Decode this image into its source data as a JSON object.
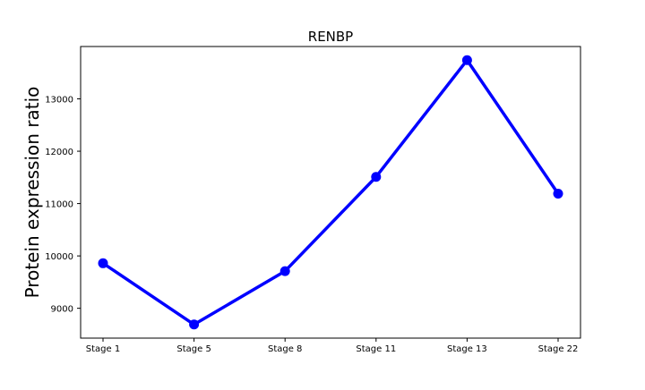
{
  "chart_data": {
    "type": "line",
    "title": "RENBP",
    "xlabel": "",
    "ylabel": "Protein expression ratio",
    "categories": [
      "Stage 1",
      "Stage 5",
      "Stage 8",
      "Stage 11",
      "Stage 13",
      "Stage 22"
    ],
    "series": [
      {
        "values": [
          9860,
          8690,
          9710,
          11510,
          13740,
          11190
        ],
        "color": "#0000ff",
        "marker": "circle"
      }
    ],
    "yticks": [
      9000,
      10000,
      11000,
      12000,
      13000
    ],
    "ylim": [
      8430,
      14000
    ],
    "grid": false,
    "legend": "none"
  }
}
